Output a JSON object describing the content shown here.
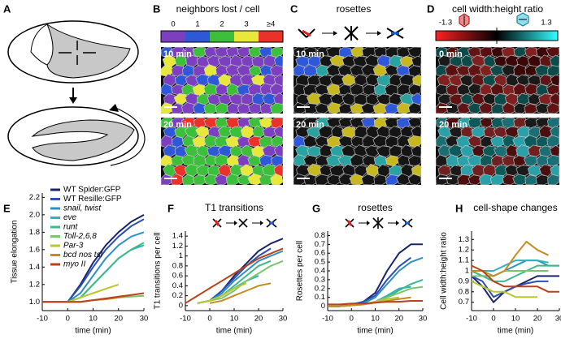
{
  "panels": {
    "A": {
      "label": "A"
    },
    "B": {
      "label": "B",
      "title": "neighbors lost / cell",
      "colorbar_labels": [
        "0",
        "1",
        "2",
        "3",
        "≥4"
      ],
      "times": [
        "10 min",
        "20 min"
      ]
    },
    "C": {
      "label": "C",
      "title": "rosettes",
      "times": [
        "10 min",
        "20 min"
      ]
    },
    "D": {
      "label": "D",
      "title": "cell width:height ratio",
      "colorbar_labels": [
        "-1.3",
        "1.3"
      ],
      "times": [
        "0 min",
        "20 min"
      ]
    }
  },
  "chart_data": [
    {
      "label": "E",
      "type": "line",
      "ylabel": "Tissue elongation",
      "xlabel": "time (min)",
      "x": [
        -10,
        -5,
        0,
        5,
        10,
        15,
        20,
        25,
        30
      ],
      "xlim": [
        -10,
        30
      ],
      "xticks": [
        -10,
        0,
        10,
        20,
        30
      ],
      "ylim": [
        0.9,
        2.25
      ],
      "yticks": [
        {
          "value": 1,
          "label": "1.0"
        },
        {
          "value": 1.2,
          "label": "1.2"
        },
        {
          "value": 1.4,
          "label": "1.4"
        },
        {
          "value": 1.6,
          "label": "1.6"
        },
        {
          "value": 1.8,
          "label": "1.8"
        },
        {
          "value": 2,
          "label": "2.0"
        },
        {
          "value": 2.2,
          "label": "2.2"
        }
      ],
      "legend": "upper left",
      "series": [
        {
          "name": "WT Spider:GFP",
          "color": "#1b2469",
          "values": [
            1.0,
            1.0,
            1.0,
            1.2,
            1.45,
            1.65,
            1.8,
            1.92,
            2.0
          ]
        },
        {
          "name": "WT Resille:GFP",
          "color": "#2b4fb3",
          "values": [
            1.0,
            1.0,
            1.0,
            1.18,
            1.4,
            1.6,
            1.75,
            1.87,
            1.95
          ]
        },
        {
          "name": "snail, twist",
          "color": "#2f8fc4",
          "values": [
            1.0,
            1.0,
            1.0,
            1.1,
            1.3,
            1.5,
            1.65,
            1.75,
            1.8
          ]
        },
        {
          "name": "eve",
          "color": "#2db3b8",
          "values": [
            1.0,
            1.0,
            1.0,
            1.05,
            1.2,
            1.35,
            1.5,
            1.6,
            1.65
          ]
        },
        {
          "name": "runt",
          "color": "#3db889",
          "values": [
            1.0,
            1.0,
            1.0,
            1.05,
            1.2,
            1.35,
            1.5,
            1.6,
            1.68
          ]
        },
        {
          "name": "Toll-2,6,8",
          "color": "#7cc46f",
          "values": [
            1.0,
            1.0,
            1.0,
            1.0,
            1.02,
            1.03,
            1.05,
            1.06,
            1.07
          ]
        },
        {
          "name": "Par-3",
          "color": "#b8c630",
          "values": [
            1.0,
            1.0,
            1.0,
            1.05,
            1.1,
            1.15,
            1.2,
            null,
            null
          ]
        },
        {
          "name": "bcd nos tsl",
          "color": "#c98a22",
          "values": [
            1.0,
            1.0,
            1.0,
            1.0,
            1.02,
            1.03,
            1.05,
            1.08,
            null
          ]
        },
        {
          "name": "myo II",
          "color": "#b5441c",
          "values": [
            1.0,
            1.0,
            1.0,
            1.0,
            1.02,
            1.04,
            1.06,
            1.08,
            1.1
          ]
        }
      ]
    },
    {
      "label": "F",
      "type": "line",
      "title": "T1 transitions",
      "ylabel": "T1 transitions per cell",
      "xlabel": "time (min)",
      "x": [
        -10,
        -5,
        0,
        5,
        10,
        15,
        20,
        25,
        30
      ],
      "xlim": [
        -10,
        30
      ],
      "xticks": [
        -10,
        0,
        10,
        20,
        30
      ],
      "ylim": [
        -0.1,
        1.5
      ],
      "yticks": [
        0,
        0.2,
        0.4,
        0.6,
        0.8,
        1,
        1.2,
        1.4
      ],
      "series": [
        {
          "color": "#1b2469",
          "values": [
            null,
            0.05,
            0.1,
            0.3,
            0.6,
            0.85,
            1.1,
            1.25,
            1.35
          ]
        },
        {
          "color": "#2b4fb3",
          "values": [
            null,
            0.05,
            0.1,
            0.3,
            0.55,
            0.8,
            1.0,
            1.15,
            null
          ]
        },
        {
          "color": "#2f8fc4",
          "values": [
            null,
            0.05,
            0.1,
            0.25,
            0.5,
            0.7,
            0.9,
            1.0,
            1.1
          ]
        },
        {
          "color": "#2db3b8",
          "values": [
            null,
            0.05,
            0.1,
            0.2,
            0.35,
            0.5,
            0.6,
            null,
            null
          ]
        },
        {
          "color": "#3db889",
          "values": [
            null,
            0.05,
            0.1,
            0.2,
            0.4,
            0.6,
            0.8,
            0.9,
            null
          ]
        },
        {
          "color": "#7cc46f",
          "values": [
            null,
            0.05,
            0.1,
            0.15,
            0.3,
            0.5,
            0.65,
            0.8,
            0.9
          ]
        },
        {
          "color": "#b8c630",
          "values": [
            null,
            0.05,
            0.1,
            0.2,
            0.35,
            0.45,
            null,
            null,
            null
          ]
        },
        {
          "color": "#c98a22",
          "values": [
            null,
            null,
            0.05,
            0.1,
            0.2,
            0.3,
            0.4,
            0.45,
            null
          ]
        },
        {
          "color": "#b5441c",
          "values": [
            0.05,
            0.2,
            0.35,
            0.5,
            0.65,
            0.8,
            0.95,
            1.05,
            1.15
          ]
        }
      ]
    },
    {
      "label": "G",
      "type": "line",
      "title": "rosettes",
      "ylabel": "Rosettes per cell",
      "xlabel": "time (min)",
      "x": [
        -10,
        -5,
        0,
        5,
        10,
        15,
        20,
        25,
        30
      ],
      "xlim": [
        -10,
        30
      ],
      "xticks": [
        -10,
        0,
        10,
        20,
        30
      ],
      "ylim": [
        -0.05,
        0.85
      ],
      "yticks": [
        0,
        0.1,
        0.2,
        0.3,
        0.4,
        0.5,
        0.6,
        0.7,
        0.8
      ],
      "series": [
        {
          "color": "#1b2469",
          "values": [
            0,
            0,
            0.02,
            0.05,
            0.15,
            0.4,
            0.6,
            0.7,
            0.7
          ]
        },
        {
          "color": "#2b4fb3",
          "values": [
            0,
            0,
            0.02,
            0.05,
            0.12,
            0.3,
            0.45,
            0.55,
            null
          ]
        },
        {
          "color": "#2f8fc4",
          "values": [
            0,
            0,
            0.01,
            0.03,
            0.1,
            0.25,
            0.4,
            0.5,
            0.55
          ]
        },
        {
          "color": "#2db3b8",
          "values": [
            0,
            0,
            0.01,
            0.02,
            0.05,
            0.12,
            0.2,
            0.22,
            null
          ]
        },
        {
          "color": "#3db889",
          "values": [
            0,
            0,
            0.01,
            0.02,
            0.05,
            0.1,
            0.18,
            0.25,
            0.3
          ]
        },
        {
          "color": "#7cc46f",
          "values": [
            0,
            0,
            0.01,
            0.02,
            0.05,
            0.1,
            0.15,
            0.2,
            0.22
          ]
        },
        {
          "color": "#b8c630",
          "values": [
            0,
            0,
            0.01,
            0.02,
            0.05,
            0.08,
            0.1,
            null,
            null
          ]
        },
        {
          "color": "#c98a22",
          "values": [
            0,
            0,
            0.01,
            0.02,
            0.04,
            0.06,
            0.08,
            0.1,
            null
          ]
        },
        {
          "color": "#b5441c",
          "values": [
            0.02,
            0.02,
            0.03,
            0.03,
            0.04,
            0.05,
            0.05,
            0.06,
            0.06
          ]
        }
      ]
    },
    {
      "label": "H",
      "type": "line",
      "title": "cell-shape changes",
      "ylabel": "Cell width:height ratio",
      "xlabel": "time (min)",
      "x": [
        -10,
        -5,
        0,
        5,
        10,
        15,
        20,
        25,
        30
      ],
      "xlim": [
        -10,
        30
      ],
      "xticks": [
        -10,
        0,
        10,
        20,
        30
      ],
      "ylim": [
        0.62,
        1.38
      ],
      "yticks": [
        0.7,
        0.8,
        0.9,
        1,
        1.1,
        1.2,
        1.3
      ],
      "series": [
        {
          "color": "#1b2469",
          "values": [
            0.95,
            0.85,
            0.7,
            0.8,
            0.85,
            0.9,
            0.95,
            0.95,
            0.95
          ]
        },
        {
          "color": "#2b4fb3",
          "values": [
            0.95,
            0.9,
            0.75,
            0.8,
            0.85,
            0.88,
            0.9,
            0.9,
            null
          ]
        },
        {
          "color": "#2f8fc4",
          "values": [
            1.0,
            0.95,
            0.95,
            1.0,
            1.05,
            1.1,
            1.1,
            1.05,
            1.05
          ]
        },
        {
          "color": "#2db3b8",
          "values": [
            1.0,
            1.0,
            1.0,
            1.05,
            1.1,
            1.1,
            1.1,
            1.08,
            null
          ]
        },
        {
          "color": "#3db889",
          "values": [
            1.0,
            0.95,
            0.9,
            0.9,
            0.95,
            1.0,
            1.05,
            1.05,
            1.05
          ]
        },
        {
          "color": "#7cc46f",
          "values": [
            0.95,
            0.95,
            0.95,
            1.0,
            1.0,
            1.0,
            1.0,
            1.0,
            null
          ]
        },
        {
          "color": "#b8c630",
          "values": [
            0.9,
            0.85,
            0.8,
            0.8,
            0.75,
            0.75,
            0.75,
            null,
            null
          ]
        },
        {
          "color": "#c98a22",
          "values": [
            1.0,
            1.0,
            0.95,
            1.0,
            1.15,
            1.28,
            1.2,
            1.15,
            null
          ]
        },
        {
          "color": "#b5441c",
          "values": [
            1.05,
            1.0,
            0.9,
            0.85,
            0.85,
            0.85,
            0.85,
            0.8,
            0.8
          ]
        }
      ]
    }
  ]
}
